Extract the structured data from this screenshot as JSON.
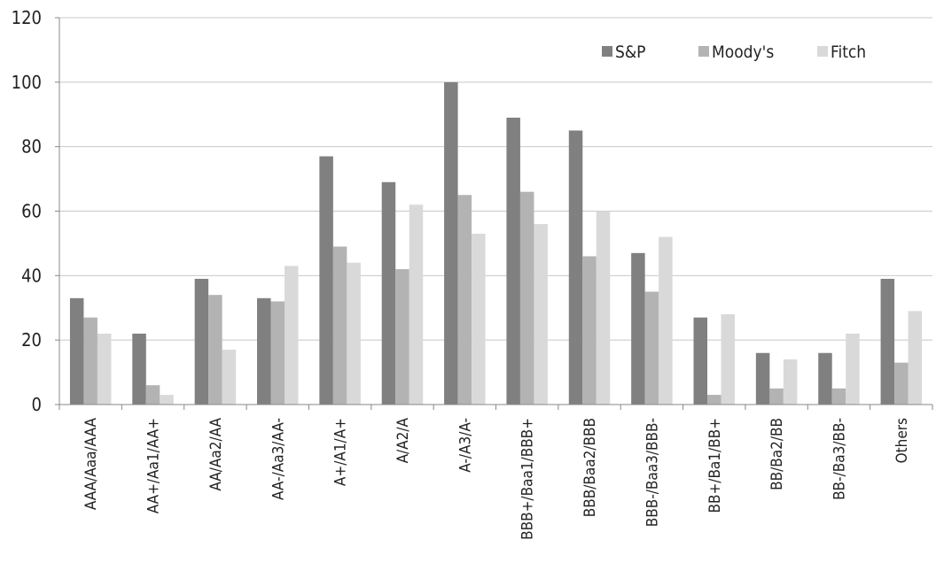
{
  "chart_data": {
    "type": "bar",
    "categories": [
      "AAA/Aaa/AAA",
      "AA+/Aa1/AA+",
      "AA/Aa2/AA",
      "AA-/Aa3/AA-",
      "A+/A1/A+",
      "A/A2/A",
      "A-/A3/A-",
      "BBB+/Baa1/BBB+",
      "BBB/Baa2/BBB",
      "BBB-/Baa3/BBB-",
      "BB+/Ba1/BB+",
      "BB/Ba2/BB",
      "BB-/Ba3/BB-",
      "Others"
    ],
    "series": [
      {
        "name": "S&P",
        "color": "#808080",
        "values": [
          33,
          22,
          39,
          33,
          77,
          69,
          100,
          89,
          85,
          47,
          27,
          16,
          16,
          39
        ]
      },
      {
        "name": "Moody's",
        "color": "#b3b3b3",
        "values": [
          27,
          6,
          34,
          32,
          49,
          42,
          65,
          66,
          46,
          35,
          3,
          5,
          5,
          13
        ]
      },
      {
        "name": "Fitch",
        "color": "#d9d9d9",
        "values": [
          22,
          3,
          17,
          43,
          44,
          62,
          53,
          56,
          60,
          52,
          28,
          14,
          22,
          29
        ]
      }
    ],
    "title": "",
    "xlabel": "",
    "ylabel": "",
    "ylim": [
      0,
      120
    ],
    "yticks": [
      "0",
      "20",
      "40",
      "60",
      "80",
      "100",
      "120"
    ],
    "grid": true,
    "legend_position": "top-right"
  }
}
